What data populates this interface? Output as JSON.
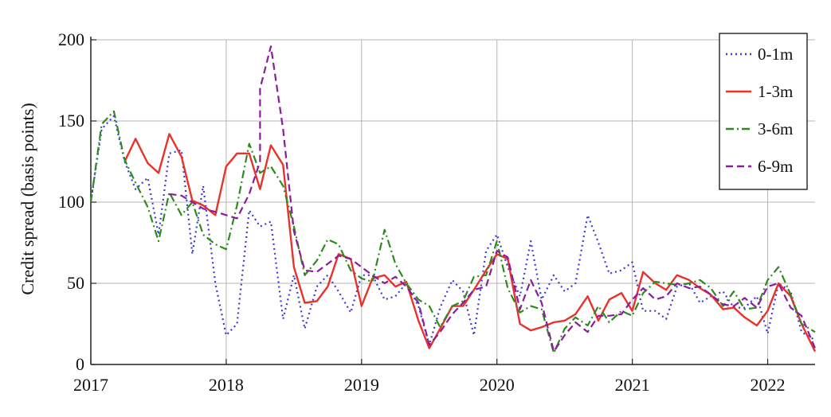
{
  "chart_data": {
    "type": "line",
    "title": "",
    "xlabel": "",
    "ylabel": "Credit spread (basis points)",
    "xlim": [
      2017.0,
      2022.35
    ],
    "ylim": [
      0,
      200
    ],
    "x_ticks": [
      2017,
      2018,
      2019,
      2020,
      2021,
      2022
    ],
    "y_ticks": [
      0,
      50,
      100,
      150,
      200
    ],
    "x_tick_labels": [
      "2017",
      "2018",
      "2019",
      "2020",
      "2021",
      "2022"
    ],
    "y_tick_labels": [
      "0",
      "50",
      "100",
      "150",
      "200"
    ],
    "grid": true,
    "legend_position": "top-right",
    "series": [
      {
        "name": "0-1m",
        "color": "#3a3ad8",
        "dash": "dotted",
        "points": [
          [
            2017.0,
            100
          ],
          [
            2017.08,
            145
          ],
          [
            2017.17,
            153
          ],
          [
            2017.25,
            125
          ],
          [
            2017.33,
            108
          ],
          [
            2017.42,
            115
          ],
          [
            2017.5,
            80
          ],
          [
            2017.58,
            130
          ],
          [
            2017.67,
            132
          ],
          [
            2017.75,
            68
          ],
          [
            2017.83,
            110
          ],
          [
            2017.92,
            50
          ],
          [
            2018.0,
            18
          ],
          [
            2018.08,
            25
          ],
          [
            2018.17,
            95
          ],
          [
            2018.25,
            85
          ],
          [
            2018.33,
            88
          ],
          [
            2018.42,
            28
          ],
          [
            2018.5,
            55
          ],
          [
            2018.58,
            22
          ],
          [
            2018.67,
            48
          ],
          [
            2018.75,
            55
          ],
          [
            2018.83,
            45
          ],
          [
            2018.92,
            32
          ],
          [
            2019.0,
            55
          ],
          [
            2019.08,
            55
          ],
          [
            2019.17,
            40
          ],
          [
            2019.25,
            42
          ],
          [
            2019.33,
            50
          ],
          [
            2019.42,
            36
          ],
          [
            2019.5,
            12
          ],
          [
            2019.58,
            35
          ],
          [
            2019.67,
            52
          ],
          [
            2019.75,
            45
          ],
          [
            2019.83,
            18
          ],
          [
            2019.92,
            70
          ],
          [
            2020.0,
            80
          ],
          [
            2020.08,
            60
          ],
          [
            2020.17,
            42
          ],
          [
            2020.25,
            76
          ],
          [
            2020.33,
            40
          ],
          [
            2020.42,
            55
          ],
          [
            2020.5,
            45
          ],
          [
            2020.58,
            50
          ],
          [
            2020.67,
            92
          ],
          [
            2020.75,
            75
          ],
          [
            2020.83,
            56
          ],
          [
            2020.92,
            58
          ],
          [
            2021.0,
            63
          ],
          [
            2021.08,
            33
          ],
          [
            2021.17,
            33
          ],
          [
            2021.25,
            28
          ],
          [
            2021.33,
            48
          ],
          [
            2021.42,
            50
          ],
          [
            2021.5,
            38
          ],
          [
            2021.58,
            42
          ],
          [
            2021.67,
            45
          ],
          [
            2021.75,
            35
          ],
          [
            2021.83,
            35
          ],
          [
            2021.92,
            42
          ],
          [
            2022.0,
            19
          ],
          [
            2022.08,
            50
          ],
          [
            2022.17,
            45
          ],
          [
            2022.25,
            20
          ],
          [
            2022.35,
            15
          ]
        ]
      },
      {
        "name": "1-3m",
        "color": "#e8322a",
        "dash": "solid",
        "points": [
          [
            2017.25,
            125
          ],
          [
            2017.33,
            139
          ],
          [
            2017.42,
            124
          ],
          [
            2017.5,
            118
          ],
          [
            2017.58,
            142
          ],
          [
            2017.67,
            128
          ],
          [
            2017.75,
            101
          ],
          [
            2017.83,
            98
          ],
          [
            2017.92,
            92
          ],
          [
            2018.0,
            122
          ],
          [
            2018.08,
            130
          ],
          [
            2018.17,
            130
          ],
          [
            2018.25,
            108
          ],
          [
            2018.33,
            135
          ],
          [
            2018.42,
            123
          ],
          [
            2018.5,
            60
          ],
          [
            2018.58,
            38
          ],
          [
            2018.67,
            39
          ],
          [
            2018.75,
            48
          ],
          [
            2018.83,
            68
          ],
          [
            2018.92,
            65
          ],
          [
            2019.0,
            36
          ],
          [
            2019.08,
            53
          ],
          [
            2019.17,
            55
          ],
          [
            2019.25,
            48
          ],
          [
            2019.33,
            51
          ],
          [
            2019.42,
            27
          ],
          [
            2019.5,
            10
          ],
          [
            2019.58,
            22
          ],
          [
            2019.67,
            36
          ],
          [
            2019.75,
            36
          ],
          [
            2019.83,
            46
          ],
          [
            2019.92,
            58
          ],
          [
            2020.0,
            68
          ],
          [
            2020.08,
            65
          ],
          [
            2020.17,
            25
          ],
          [
            2020.25,
            21
          ],
          [
            2020.33,
            23
          ],
          [
            2020.42,
            26
          ],
          [
            2020.5,
            27
          ],
          [
            2020.58,
            31
          ],
          [
            2020.67,
            42
          ],
          [
            2020.75,
            27
          ],
          [
            2020.83,
            40
          ],
          [
            2020.92,
            44
          ],
          [
            2021.0,
            33
          ],
          [
            2021.08,
            57
          ],
          [
            2021.17,
            50
          ],
          [
            2021.25,
            46
          ],
          [
            2021.33,
            55
          ],
          [
            2021.42,
            52
          ],
          [
            2021.5,
            47
          ],
          [
            2021.58,
            43
          ],
          [
            2021.67,
            34
          ],
          [
            2021.75,
            35
          ],
          [
            2021.83,
            29
          ],
          [
            2021.92,
            24
          ],
          [
            2022.0,
            33
          ],
          [
            2022.08,
            50
          ],
          [
            2022.17,
            42
          ],
          [
            2022.25,
            25
          ],
          [
            2022.35,
            8
          ]
        ]
      },
      {
        "name": "3-6m",
        "color": "#2e8a1e",
        "dash": "dashdot",
        "points": [
          [
            2017.0,
            100
          ],
          [
            2017.08,
            148
          ],
          [
            2017.17,
            156
          ],
          [
            2017.25,
            126
          ],
          [
            2017.33,
            112
          ],
          [
            2017.42,
            97
          ],
          [
            2017.5,
            76
          ],
          [
            2017.58,
            106
          ],
          [
            2017.67,
            92
          ],
          [
            2017.75,
            100
          ],
          [
            2017.83,
            80
          ],
          [
            2017.92,
            74
          ],
          [
            2018.0,
            71
          ],
          [
            2018.08,
            98
          ],
          [
            2018.17,
            136
          ],
          [
            2018.25,
            118
          ],
          [
            2018.33,
            122
          ],
          [
            2018.42,
            110
          ],
          [
            2018.5,
            85
          ],
          [
            2018.58,
            55
          ],
          [
            2018.67,
            64
          ],
          [
            2018.75,
            77
          ],
          [
            2018.83,
            74
          ],
          [
            2018.92,
            58
          ],
          [
            2019.0,
            53
          ],
          [
            2019.08,
            51
          ],
          [
            2019.17,
            83
          ],
          [
            2019.25,
            62
          ],
          [
            2019.33,
            50
          ],
          [
            2019.42,
            40
          ],
          [
            2019.5,
            36
          ],
          [
            2019.58,
            23
          ],
          [
            2019.67,
            36
          ],
          [
            2019.75,
            39
          ],
          [
            2019.83,
            54
          ],
          [
            2019.92,
            55
          ],
          [
            2020.0,
            76
          ],
          [
            2020.08,
            47
          ],
          [
            2020.17,
            32
          ],
          [
            2020.25,
            36
          ],
          [
            2020.33,
            34
          ],
          [
            2020.42,
            7
          ],
          [
            2020.5,
            22
          ],
          [
            2020.58,
            29
          ],
          [
            2020.67,
            24
          ],
          [
            2020.75,
            36
          ],
          [
            2020.83,
            26
          ],
          [
            2020.92,
            33
          ],
          [
            2021.0,
            30
          ],
          [
            2021.08,
            44
          ],
          [
            2021.17,
            51
          ],
          [
            2021.25,
            50
          ],
          [
            2021.33,
            49
          ],
          [
            2021.42,
            50
          ],
          [
            2021.5,
            52
          ],
          [
            2021.58,
            47
          ],
          [
            2021.67,
            36
          ],
          [
            2021.75,
            45
          ],
          [
            2021.83,
            34
          ],
          [
            2021.92,
            35
          ],
          [
            2022.0,
            52
          ],
          [
            2022.08,
            60
          ],
          [
            2022.17,
            43
          ],
          [
            2022.25,
            25
          ],
          [
            2022.35,
            20
          ]
        ]
      },
      {
        "name": "6-9m",
        "color": "#8b1d9c",
        "dash": "dashed",
        "points": [
          [
            2017.58,
            105
          ],
          [
            2017.67,
            104
          ],
          [
            2017.75,
            100
          ],
          [
            2017.83,
            96
          ],
          [
            2017.92,
            94
          ],
          [
            2018.0,
            92
          ],
          [
            2018.08,
            90
          ],
          [
            2018.17,
            105
          ],
          [
            2018.25,
            125
          ],
          [
            2018.25,
            170
          ],
          [
            2018.33,
            196
          ],
          [
            2018.42,
            145
          ],
          [
            2018.5,
            82
          ],
          [
            2018.58,
            58
          ],
          [
            2018.67,
            57
          ],
          [
            2018.75,
            62
          ],
          [
            2018.83,
            67
          ],
          [
            2018.92,
            65
          ],
          [
            2019.0,
            60
          ],
          [
            2019.08,
            55
          ],
          [
            2019.17,
            50
          ],
          [
            2019.25,
            54
          ],
          [
            2019.33,
            48
          ],
          [
            2019.42,
            38
          ],
          [
            2019.5,
            12
          ],
          [
            2019.58,
            20
          ],
          [
            2019.67,
            31
          ],
          [
            2019.75,
            38
          ],
          [
            2019.83,
            46
          ],
          [
            2019.92,
            48
          ],
          [
            2020.0,
            70
          ],
          [
            2020.08,
            66
          ],
          [
            2020.17,
            34
          ],
          [
            2020.25,
            52
          ],
          [
            2020.33,
            38
          ],
          [
            2020.42,
            8
          ],
          [
            2020.5,
            18
          ],
          [
            2020.58,
            26
          ],
          [
            2020.67,
            20
          ],
          [
            2020.75,
            30
          ],
          [
            2020.83,
            30
          ],
          [
            2020.92,
            31
          ],
          [
            2021.0,
            40
          ],
          [
            2021.08,
            47
          ],
          [
            2021.17,
            40
          ],
          [
            2021.25,
            42
          ],
          [
            2021.33,
            50
          ],
          [
            2021.42,
            47
          ],
          [
            2021.5,
            48
          ],
          [
            2021.58,
            43
          ],
          [
            2021.67,
            37
          ],
          [
            2021.75,
            36
          ],
          [
            2021.83,
            41
          ],
          [
            2021.92,
            35
          ],
          [
            2022.0,
            48
          ],
          [
            2022.08,
            50
          ],
          [
            2022.17,
            35
          ],
          [
            2022.25,
            30
          ],
          [
            2022.35,
            10
          ]
        ]
      }
    ]
  }
}
